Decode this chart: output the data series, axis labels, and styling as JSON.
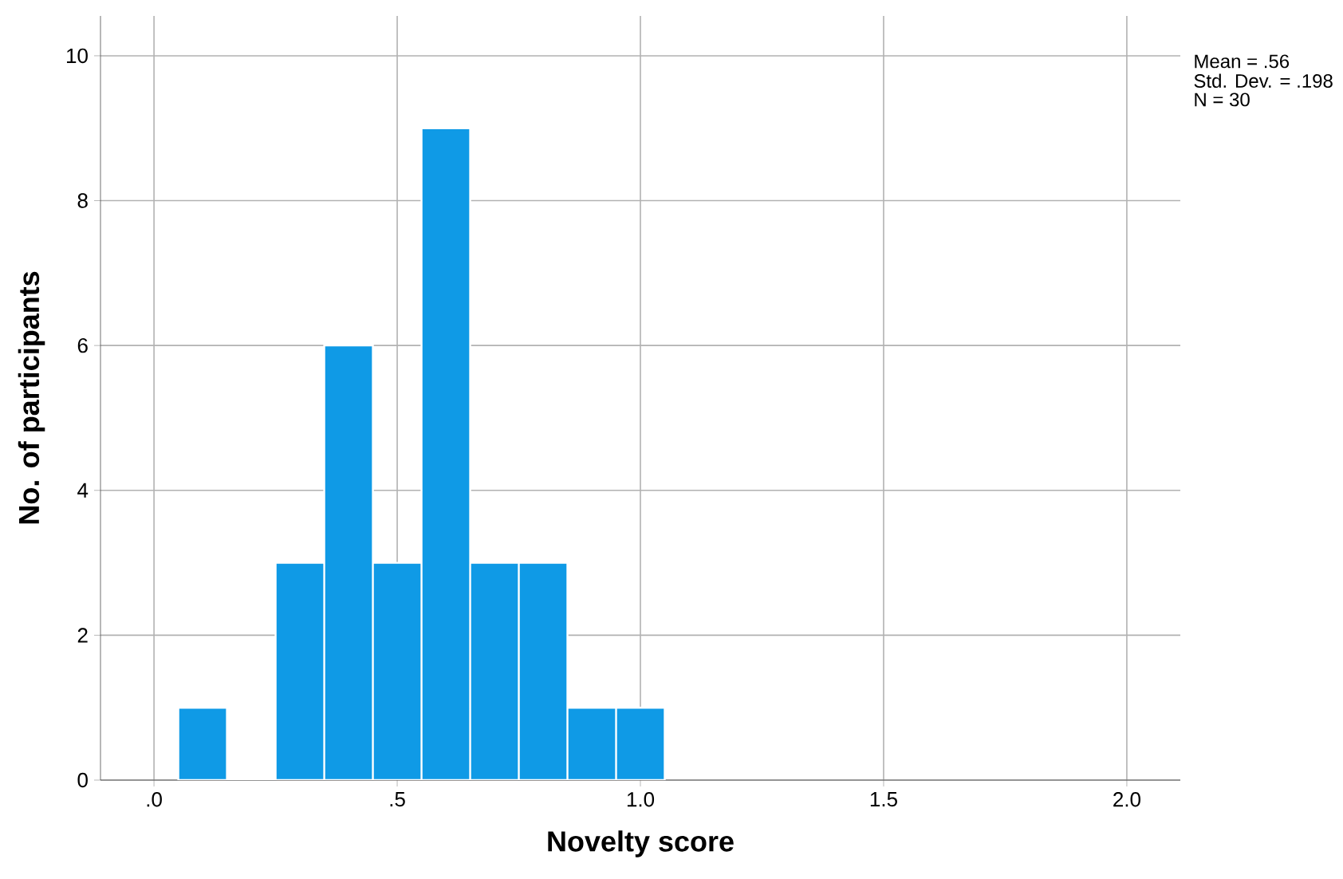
{
  "chart_data": {
    "type": "histogram",
    "xlabel": "Novelty score",
    "ylabel": "No. of participants",
    "bins": [
      0.05,
      0.15,
      0.25,
      0.35,
      0.45,
      0.55,
      0.65,
      0.75,
      0.85,
      0.95,
      1.05
    ],
    "values": [
      1,
      0,
      3,
      6,
      3,
      9,
      3,
      3,
      1,
      1
    ],
    "color": "#0f9ae6",
    "xlim": [
      -0.11,
      2.11
    ],
    "ylim": [
      0,
      10.55
    ],
    "xticks": [
      {
        "value": 0,
        "label": ".0"
      },
      {
        "value": 0.5,
        "label": ".5"
      },
      {
        "value": 1.0,
        "label": "1.0"
      },
      {
        "value": 1.5,
        "label": "1.5"
      },
      {
        "value": 2.0,
        "label": "2.0"
      }
    ],
    "yticks": [
      0,
      2,
      4,
      6,
      8,
      10
    ],
    "grid": true,
    "annotations": [
      "Mean = .56",
      "Std. Dev. = .198",
      "N = 30"
    ]
  }
}
